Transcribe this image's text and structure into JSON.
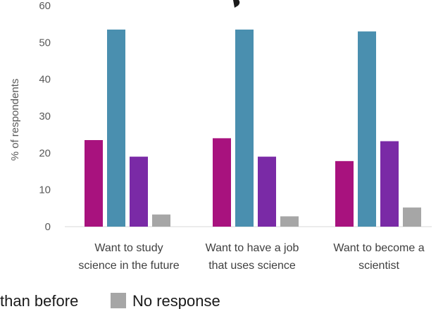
{
  "chart_data": {
    "type": "bar",
    "categories": [
      [
        "Want to study",
        "science in the future"
      ],
      [
        "Want to have a job",
        "that uses science"
      ],
      [
        "Want to become a",
        "scientist"
      ]
    ],
    "series": [
      {
        "values": [
          23.5,
          24,
          17.8
        ],
        "color": "#a8127e"
      },
      {
        "values": [
          53.5,
          53.5,
          53
        ],
        "color": "#4a8faf"
      },
      {
        "values": [
          19,
          19,
          23.2
        ],
        "color": "#7a2aa6"
      },
      {
        "name": "No response",
        "values": [
          3.3,
          2.8,
          5.2
        ],
        "color": "#a6a6a6"
      }
    ],
    "ylabel": "% of respondents",
    "ylim": [
      0,
      60
    ],
    "yticks": [
      0,
      10,
      20,
      30,
      40,
      50,
      60
    ],
    "legend": {
      "placement": "bottom",
      "partial_text": "than before"
    },
    "grid": false
  }
}
